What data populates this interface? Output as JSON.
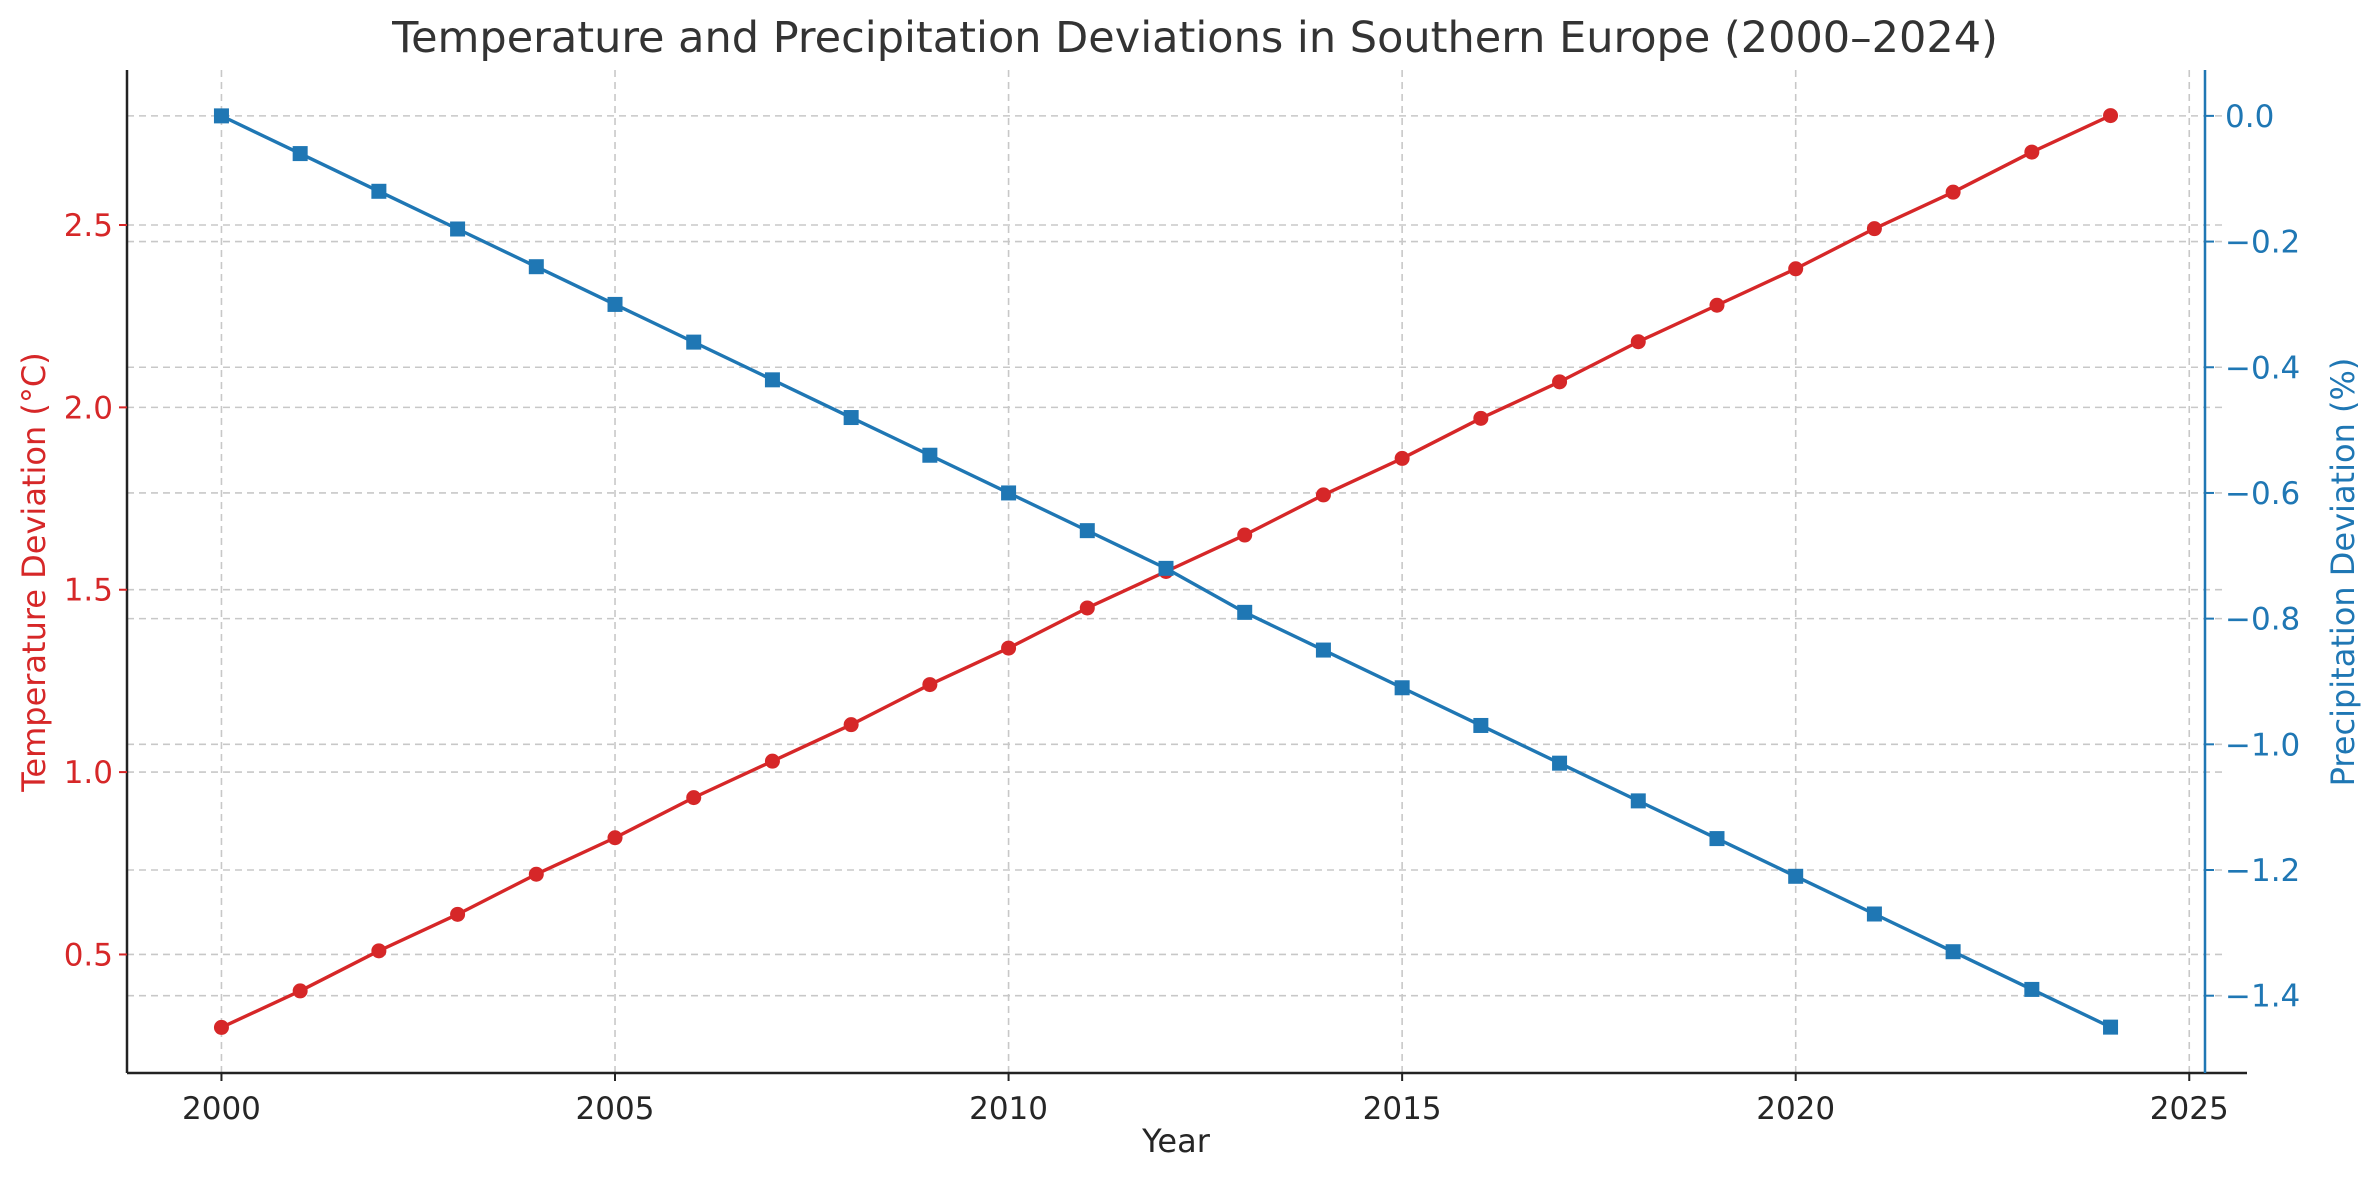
{
  "chart_data": {
    "type": "line",
    "title": "Temperature and Precipitation Deviations in Southern Europe (2000–2024)",
    "xlabel": "Year",
    "ylabel_left": "Temperature Deviation (°C)",
    "ylabel_right": "Precipitation Deviation (%)",
    "xlim": [
      1998.8,
      2025.2
    ],
    "xticks": [
      2000,
      2005,
      2010,
      2015,
      2020,
      2025
    ],
    "ylim_left": [
      0.175,
      2.925
    ],
    "yticks_left": [
      0.5,
      1.0,
      1.5,
      2.0,
      2.5
    ],
    "ylim_right": [
      -1.523,
      0.073
    ],
    "yticks_right": [
      0.0,
      -0.2,
      -0.4,
      -0.6,
      -0.8,
      -1.0,
      -1.2,
      -1.4
    ],
    "grid": true,
    "x": [
      2000,
      2001,
      2002,
      2003,
      2004,
      2005,
      2006,
      2007,
      2008,
      2009,
      2010,
      2011,
      2012,
      2013,
      2014,
      2015,
      2016,
      2017,
      2018,
      2019,
      2020,
      2021,
      2022,
      2023,
      2024
    ],
    "series": [
      {
        "axis": "left",
        "color": "#d62728",
        "marker": "circle",
        "values": [
          0.3,
          0.4,
          0.51,
          0.61,
          0.72,
          0.82,
          0.93,
          1.03,
          1.13,
          1.24,
          1.34,
          1.45,
          1.55,
          1.65,
          1.76,
          1.86,
          1.97,
          2.07,
          2.18,
          2.28,
          2.38,
          2.49,
          2.59,
          2.7,
          2.8
        ]
      },
      {
        "axis": "right",
        "color": "#1f77b4",
        "marker": "square",
        "values": [
          0.0,
          -0.06,
          -0.12,
          -0.18,
          -0.24,
          -0.3,
          -0.36,
          -0.42,
          -0.48,
          -0.54,
          -0.6,
          -0.66,
          -0.72,
          -0.79,
          -0.85,
          -0.91,
          -0.97,
          -1.03,
          -1.09,
          -1.15,
          -1.21,
          -1.27,
          -1.33,
          -1.39,
          -1.45
        ]
      }
    ]
  }
}
